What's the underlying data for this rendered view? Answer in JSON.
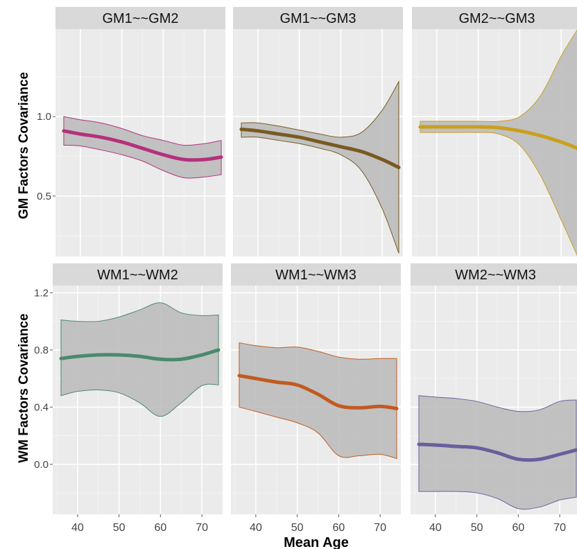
{
  "chart_data": {
    "type": "line",
    "xlabel": "Mean Age",
    "x_ticks": [
      40,
      50,
      60,
      70
    ],
    "xlim": [
      34,
      75
    ],
    "rows": [
      {
        "ylabel": "GM Factors Covariance",
        "ylim": [
          0.12,
          1.55
        ],
        "y_ticks": [
          0.5,
          1.0
        ],
        "y_tick_labels": [
          "0.5",
          "1.0"
        ],
        "panels": [
          {
            "title": "GM1~~GM2",
            "color": "#b5307e",
            "x": [
              36,
              40,
              45,
              50,
              55,
              60,
              65,
              70,
              74
            ],
            "y": [
              0.91,
              0.89,
              0.87,
              0.84,
              0.8,
              0.76,
              0.73,
              0.73,
              0.745
            ],
            "lower": [
              0.82,
              0.815,
              0.79,
              0.76,
              0.72,
              0.66,
              0.615,
              0.62,
              0.635
            ],
            "upper": [
              1.0,
              0.98,
              0.96,
              0.925,
              0.88,
              0.85,
              0.82,
              0.83,
              0.85
            ]
          },
          {
            "title": "GM1~~GM3",
            "color": "#7a5a20",
            "x": [
              36,
              40,
              45,
              50,
              55,
              60,
              65,
              70,
              74
            ],
            "y": [
              0.92,
              0.91,
              0.89,
              0.87,
              0.84,
              0.81,
              0.78,
              0.73,
              0.68
            ],
            "lower": [
              0.87,
              0.87,
              0.85,
              0.83,
              0.8,
              0.76,
              0.66,
              0.42,
              0.14
            ],
            "upper": [
              0.96,
              0.96,
              0.94,
              0.915,
              0.89,
              0.87,
              0.9,
              1.04,
              1.22
            ]
          },
          {
            "title": "GM2~~GM3",
            "color": "#c9a01d",
            "x": [
              36,
              40,
              45,
              50,
              55,
              60,
              65,
              70,
              74
            ],
            "y": [
              0.935,
              0.935,
              0.935,
              0.935,
              0.93,
              0.91,
              0.88,
              0.84,
              0.8
            ],
            "lower": [
              0.9,
              0.9,
              0.9,
              0.9,
              0.89,
              0.82,
              0.63,
              0.35,
              0.12
            ],
            "upper": [
              0.97,
              0.97,
              0.97,
              0.97,
              0.97,
              1.0,
              1.13,
              1.38,
              1.55
            ]
          }
        ]
      },
      {
        "ylabel": "WM Factors Covariance",
        "ylim": [
          -0.35,
          1.25
        ],
        "y_ticks": [
          0.0,
          0.4,
          0.8,
          1.2
        ],
        "y_tick_labels": [
          "0.0",
          "0.4",
          "0.8",
          "1.2"
        ],
        "panels": [
          {
            "title": "WM1~~WM2",
            "color": "#4a8a6a",
            "x": [
              36,
              40,
              45,
              50,
              55,
              60,
              65,
              70,
              74
            ],
            "y": [
              0.74,
              0.755,
              0.765,
              0.765,
              0.755,
              0.735,
              0.735,
              0.765,
              0.8
            ],
            "lower": [
              0.48,
              0.51,
              0.52,
              0.5,
              0.43,
              0.335,
              0.43,
              0.55,
              0.555
            ],
            "upper": [
              1.01,
              1.0,
              1.0,
              1.03,
              1.08,
              1.13,
              1.06,
              1.04,
              1.045
            ]
          },
          {
            "title": "WM1~~WM3",
            "color": "#c25a20",
            "x": [
              36,
              40,
              45,
              50,
              55,
              60,
              65,
              70,
              74
            ],
            "y": [
              0.62,
              0.6,
              0.575,
              0.555,
              0.49,
              0.41,
              0.395,
              0.405,
              0.39
            ],
            "lower": [
              0.4,
              0.37,
              0.33,
              0.29,
              0.22,
              0.06,
              0.06,
              0.07,
              0.04
            ],
            "upper": [
              0.85,
              0.83,
              0.815,
              0.82,
              0.79,
              0.75,
              0.735,
              0.74,
              0.74
            ]
          },
          {
            "title": "WM2~~WM3",
            "color": "#6a5e9e",
            "x": [
              36,
              40,
              45,
              50,
              55,
              60,
              65,
              70,
              74
            ],
            "y": [
              0.14,
              0.135,
              0.125,
              0.115,
              0.08,
              0.035,
              0.035,
              0.07,
              0.1
            ],
            "lower": [
              -0.19,
              -0.19,
              -0.19,
              -0.2,
              -0.24,
              -0.31,
              -0.3,
              -0.25,
              -0.23
            ],
            "upper": [
              0.48,
              0.47,
              0.46,
              0.44,
              0.4,
              0.37,
              0.38,
              0.44,
              0.45
            ]
          }
        ]
      }
    ]
  }
}
